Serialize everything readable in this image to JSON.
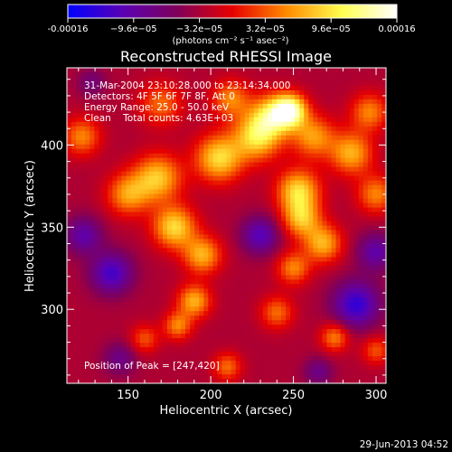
{
  "chart_data": {
    "type": "heatmap",
    "title": "Reconstructed RHESSI Image",
    "xlabel": "Heliocentric X (arcsec)",
    "ylabel": "Heliocentric Y (arcsec)",
    "xlim": [
      113,
      306
    ],
    "ylim": [
      255,
      447
    ],
    "x_ticks": [
      150,
      200,
      250,
      300
    ],
    "y_ticks": [
      300,
      350,
      400
    ],
    "colorbar": {
      "min": -0.00016,
      "max": 0.00016,
      "ticks": [
        {
          "value": -0.00016,
          "label": "-0.00016"
        },
        {
          "value": -9.6e-05,
          "label": "−9.6e−05"
        },
        {
          "value": -3.2e-05,
          "label": "−3.2e−05"
        },
        {
          "value": 3.2e-05,
          "label": "3.2e−05"
        },
        {
          "value": 9.6e-05,
          "label": "9.6e−05"
        },
        {
          "value": 0.00016,
          "label": "0.00016"
        }
      ],
      "unit_label": "(photons cm⁻² s⁻¹ asec⁻²)",
      "colors": [
        "#0000ff",
        "#5a00b4",
        "#80005a",
        "#e60000",
        "#ff8c00",
        "#ffff50",
        "#ffffff"
      ]
    },
    "annotations": [
      "31-Mar-2004 23:10:28.000 to 23:14:34.000",
      "Detectors: 4F 5F 6F 7F 8F, Att 0",
      "Energy Range: 25.0 - 50.0 keV",
      "Clean    Total counts: 4.63E+03"
    ],
    "peak_label": "Position of Peak = [247,420]",
    "peak": {
      "x": 247,
      "y": 420
    },
    "components": [
      {
        "x": 248,
        "y": 421,
        "amp": 0.00016,
        "sigma": 7
      },
      {
        "x": 237,
        "y": 418,
        "amp": 0.00011,
        "sigma": 9
      },
      {
        "x": 262,
        "y": 405,
        "amp": 9e-05,
        "sigma": 9
      },
      {
        "x": 228,
        "y": 405,
        "amp": 0.00012,
        "sigma": 10
      },
      {
        "x": 205,
        "y": 392,
        "amp": 0.00012,
        "sigma": 10
      },
      {
        "x": 285,
        "y": 395,
        "amp": 0.0001,
        "sigma": 9
      },
      {
        "x": 296,
        "y": 420,
        "amp": 8e-05,
        "sigma": 8
      },
      {
        "x": 300,
        "y": 370,
        "amp": 8e-05,
        "sigma": 8
      },
      {
        "x": 253,
        "y": 372,
        "amp": 0.00012,
        "sigma": 9
      },
      {
        "x": 255,
        "y": 355,
        "amp": 0.0001,
        "sigma": 8
      },
      {
        "x": 268,
        "y": 340,
        "amp": 0.0001,
        "sigma": 8
      },
      {
        "x": 250,
        "y": 325,
        "amp": 8e-05,
        "sigma": 7
      },
      {
        "x": 168,
        "y": 380,
        "amp": 0.00011,
        "sigma": 10
      },
      {
        "x": 150,
        "y": 370,
        "amp": 9e-05,
        "sigma": 9
      },
      {
        "x": 178,
        "y": 350,
        "amp": 0.00012,
        "sigma": 9
      },
      {
        "x": 195,
        "y": 333,
        "amp": 0.0001,
        "sigma": 8
      },
      {
        "x": 170,
        "y": 425,
        "amp": 7e-05,
        "sigma": 9
      },
      {
        "x": 212,
        "y": 428,
        "amp": 8e-05,
        "sigma": 8
      },
      {
        "x": 122,
        "y": 405,
        "amp": 8e-05,
        "sigma": 8
      },
      {
        "x": 190,
        "y": 305,
        "amp": 0.0001,
        "sigma": 7
      },
      {
        "x": 180,
        "y": 290,
        "amp": 8e-05,
        "sigma": 6
      },
      {
        "x": 240,
        "y": 298,
        "amp": 7e-05,
        "sigma": 7
      },
      {
        "x": 275,
        "y": 283,
        "amp": 8e-05,
        "sigma": 6
      },
      {
        "x": 210,
        "y": 265,
        "amp": 7e-05,
        "sigma": 6
      },
      {
        "x": 160,
        "y": 282,
        "amp": 6e-05,
        "sigma": 6
      },
      {
        "x": 300,
        "y": 275,
        "amp": 6e-05,
        "sigma": 6
      },
      {
        "x": 140,
        "y": 322,
        "amp": -9e-05,
        "sigma": 9
      },
      {
        "x": 123,
        "y": 345,
        "amp": -7e-05,
        "sigma": 8
      },
      {
        "x": 288,
        "y": 303,
        "amp": -0.0001,
        "sigma": 10
      },
      {
        "x": 300,
        "y": 335,
        "amp": -7e-05,
        "sigma": 8
      },
      {
        "x": 230,
        "y": 345,
        "amp": -8e-05,
        "sigma": 8
      },
      {
        "x": 145,
        "y": 270,
        "amp": -5e-05,
        "sigma": 7
      },
      {
        "x": 265,
        "y": 262,
        "amp": -5e-05,
        "sigma": 6
      },
      {
        "x": 128,
        "y": 438,
        "amp": -4e-05,
        "sigma": 6
      }
    ],
    "background": -3e-05
  },
  "footer": {
    "date": "29-Jun-2013 04:52"
  }
}
